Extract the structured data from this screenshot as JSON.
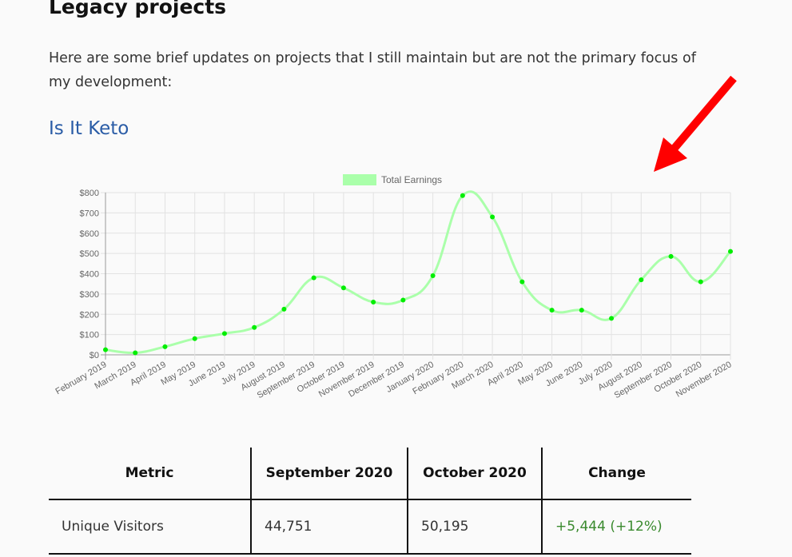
{
  "heading": "Legacy projects",
  "intro": "Here are some brief updates on projects that I still maintain but are not the primary focus of my development:",
  "subheading": "Is It Keto",
  "colors": {
    "line": "#aaffaa",
    "point": "#00ee00",
    "arrow": "#ff0000",
    "link": "#2a5ca6",
    "positive": "#3a8a2e"
  },
  "chart_data": {
    "type": "line",
    "legend": {
      "label": "Total Earnings",
      "position": "top"
    },
    "categories": [
      "February 2019",
      "March 2019",
      "April 2019",
      "May 2019",
      "June 2019",
      "July 2019",
      "August 2019",
      "September 2019",
      "October 2019",
      "November 2019",
      "December 2019",
      "January 2020",
      "February 2020",
      "March 2020",
      "April 2020",
      "May 2020",
      "June 2020",
      "July 2020",
      "August 2020",
      "September 2020",
      "October 2020",
      "November 2020"
    ],
    "series": [
      {
        "name": "Total Earnings",
        "values": [
          25,
          10,
          40,
          80,
          105,
          135,
          225,
          380,
          330,
          260,
          270,
          390,
          785,
          680,
          360,
          220,
          220,
          180,
          370,
          485,
          360,
          510
        ]
      }
    ],
    "ylim": [
      0,
      800
    ],
    "yticks": [
      0,
      100,
      200,
      300,
      400,
      500,
      600,
      700,
      800
    ],
    "ytick_labels": [
      "$0",
      "$100",
      "$200",
      "$300",
      "$400",
      "$500",
      "$600",
      "$700",
      "$800"
    ],
    "grid": true
  },
  "table": {
    "headers": [
      "Metric",
      "September 2020",
      "October 2020",
      "Change"
    ],
    "rows": [
      [
        "Unique Visitors",
        "44,751",
        "50,195",
        "+5,444 (+12%)"
      ]
    ]
  }
}
